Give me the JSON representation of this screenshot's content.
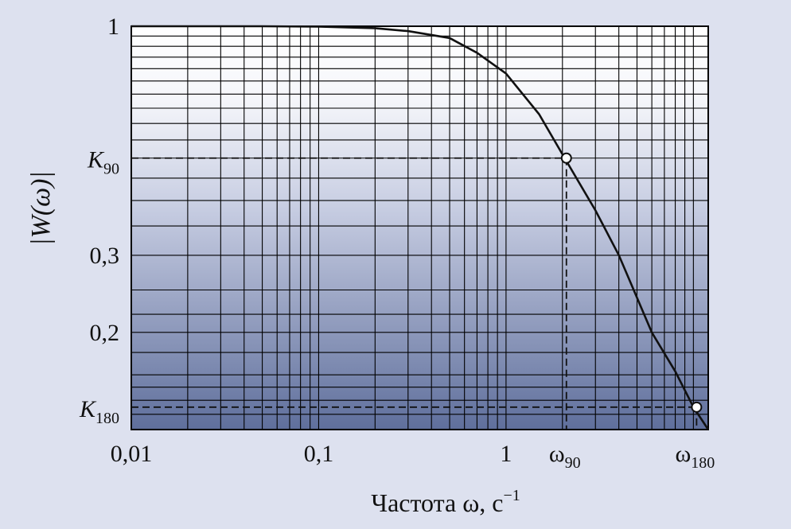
{
  "chart_data": {
    "type": "line",
    "title": "",
    "xlabel": "Частота ω, с",
    "xlabel_superscript": "−1",
    "ylabel": "|W(ω)|",
    "x_scale": "log",
    "y_scale": "log",
    "xlim": [
      0.01,
      12
    ],
    "ylim": [
      0.12,
      1
    ],
    "x_ticks": [
      {
        "value": 0.01,
        "label": "0,01"
      },
      {
        "value": 0.1,
        "label": "0,1"
      },
      {
        "value": 1,
        "label": "1"
      }
    ],
    "y_ticks": [
      {
        "value": 1,
        "label": "1"
      },
      {
        "value": 0.3,
        "label": "0,3"
      },
      {
        "value": 0.2,
        "label": "0,2"
      }
    ],
    "series": [
      {
        "x": [
          0.01,
          0.05,
          0.1,
          0.2,
          0.3,
          0.5,
          0.7,
          1,
          1.5,
          2,
          3,
          4,
          5,
          6,
          8,
          10,
          12
        ],
        "y": [
          1,
          1,
          0.998,
          0.99,
          0.975,
          0.94,
          0.87,
          0.78,
          0.63,
          0.51,
          0.38,
          0.3,
          0.24,
          0.2,
          0.163,
          0.135,
          0.12
        ]
      }
    ],
    "annotations": [
      {
        "id": "w90",
        "x": 2.1,
        "y": 0.5,
        "x_label": "ω",
        "x_sub": "90",
        "y_label": "K",
        "y_sub": "90"
      },
      {
        "id": "w180",
        "x": 10.4,
        "y": 0.135,
        "x_label": "ω",
        "x_sub": "180",
        "y_label": "K",
        "y_sub": "180"
      }
    ],
    "grid": true,
    "colors": {
      "background": "#dde1ef",
      "plot_top": "#ffffff",
      "plot_bottom": "#5f6f9c",
      "line": "#111111"
    }
  }
}
